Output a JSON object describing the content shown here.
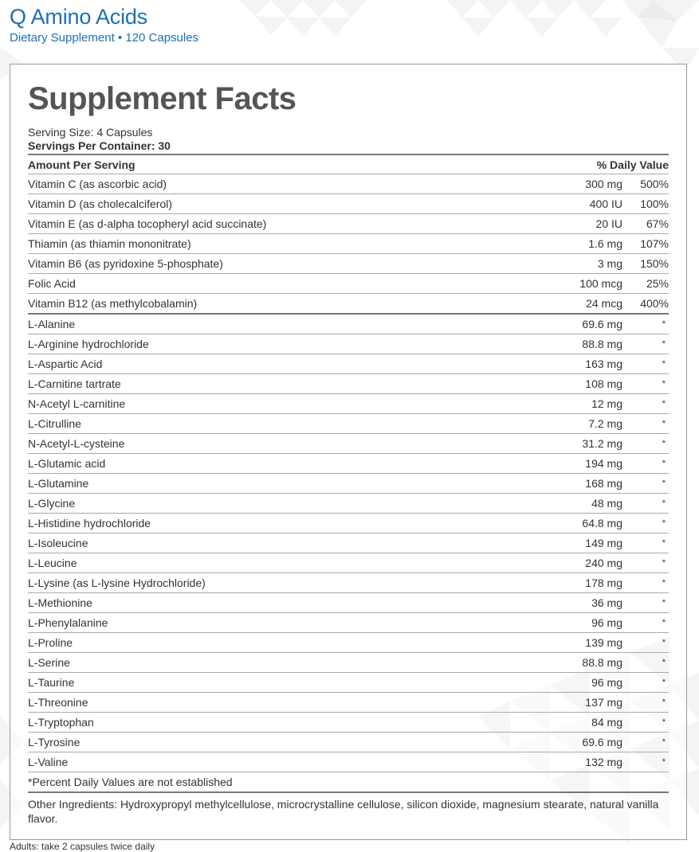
{
  "header": {
    "title": "Q Amino Acids",
    "subtitle": "Dietary Supplement • 120 Capsules"
  },
  "facts": {
    "title": "Supplement Facts",
    "serving_size": "Serving Size: 4 Capsules",
    "servings_per_container": "Servings Per Container: 30",
    "amount_header": "Amount Per Serving",
    "dv_header": "% Daily Value",
    "vitamins": [
      {
        "name": "Vitamin C (as ascorbic acid)",
        "amount": "300 mg",
        "dv": "500%"
      },
      {
        "name": "Vitamin D (as cholecalciferol)",
        "amount": "400 IU",
        "dv": "100%"
      },
      {
        "name": "Vitamin E (as d-alpha tocopheryl acid succinate)",
        "amount": "20 IU",
        "dv": "67%"
      },
      {
        "name": "Thiamin (as thiamin mononitrate)",
        "amount": "1.6 mg",
        "dv": "107%"
      },
      {
        "name": "Vitamin B6 (as pyridoxine 5-phosphate)",
        "amount": "3 mg",
        "dv": "150%"
      },
      {
        "name": "Folic Acid",
        "amount": "100 mcg",
        "dv": "25%"
      },
      {
        "name": "Vitamin B12 (as methylcobalamin)",
        "amount": "24 mcg",
        "dv": "400%"
      }
    ],
    "amino_acids": [
      {
        "name": "L-Alanine",
        "amount": "69.6 mg",
        "dv": "*"
      },
      {
        "name": "L-Arginine hydrochloride",
        "amount": "88.8 mg",
        "dv": "*"
      },
      {
        "name": "L-Aspartic Acid",
        "amount": "163 mg",
        "dv": "*"
      },
      {
        "name": "L-Carnitine tartrate",
        "amount": "108 mg",
        "dv": "*"
      },
      {
        "name": "N-Acetyl L-carnitine",
        "amount": "12 mg",
        "dv": "*"
      },
      {
        "name": "L-Citrulline",
        "amount": "7.2 mg",
        "dv": "*"
      },
      {
        "name": "N-Acetyl-L-cysteine",
        "amount": "31.2 mg",
        "dv": "*"
      },
      {
        "name": "L-Glutamic acid",
        "amount": "194 mg",
        "dv": "*"
      },
      {
        "name": "L-Glutamine",
        "amount": "168 mg",
        "dv": "*"
      },
      {
        "name": "L-Glycine",
        "amount": "48 mg",
        "dv": "*"
      },
      {
        "name": "L-Histidine hydrochloride",
        "amount": "64.8 mg",
        "dv": "*"
      },
      {
        "name": "L-Isoleucine",
        "amount": "149 mg",
        "dv": "*"
      },
      {
        "name": "L-Leucine",
        "amount": "240 mg",
        "dv": "*"
      },
      {
        "name": "L-Lysine (as L-lysine Hydrochloride)",
        "amount": "178 mg",
        "dv": "*"
      },
      {
        "name": "L-Methionine",
        "amount": "36 mg",
        "dv": "*"
      },
      {
        "name": "L-Phenylalanine",
        "amount": "96 mg",
        "dv": "*"
      },
      {
        "name": "L-Proline",
        "amount": "139 mg",
        "dv": "*"
      },
      {
        "name": "L-Serine",
        "amount": "88.8 mg",
        "dv": "*"
      },
      {
        "name": "L-Taurine",
        "amount": "96 mg",
        "dv": "*"
      },
      {
        "name": "L-Threonine",
        "amount": "137 mg",
        "dv": "*"
      },
      {
        "name": "L-Tryptophan",
        "amount": "84 mg",
        "dv": "*"
      },
      {
        "name": "L-Tyrosine",
        "amount": "69.6 mg",
        "dv": "*"
      },
      {
        "name": "L-Valine",
        "amount": "132 mg",
        "dv": "*"
      }
    ],
    "footnote": "*Percent Daily Values are not established",
    "other_ingredients": "Other Ingredients: Hydroxypropyl methylcellulose, microcrystalline cellulose, silicon dioxide, magnesium stearate, natural vanilla flavor."
  },
  "bottom_text": "Adults: take 2 capsules twice daily"
}
